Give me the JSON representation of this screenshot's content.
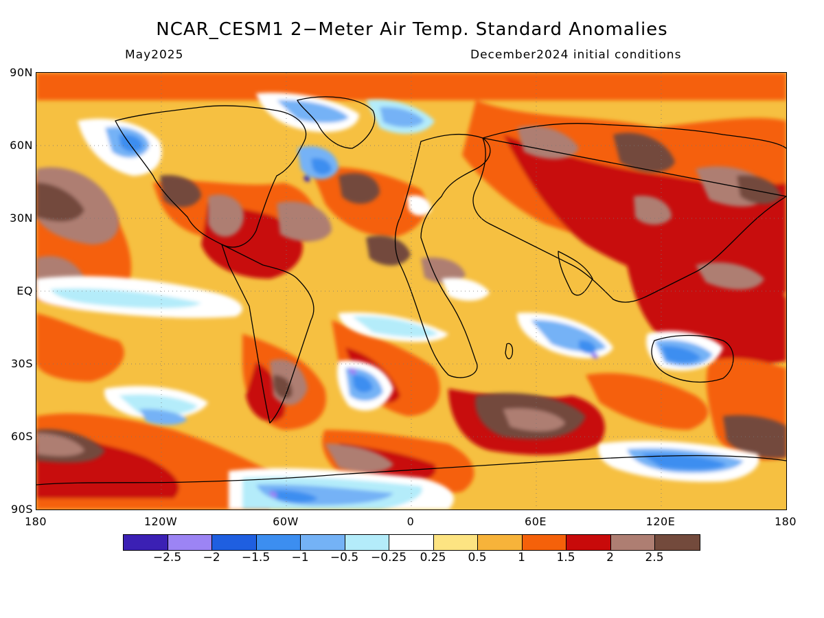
{
  "title": "NCAR_CESM1 2−Meter Air Temp. Standard Anomalies",
  "valid_month": "May2025",
  "init_conditions": "December2024 initial conditions",
  "lat_labels": [
    "90N",
    "60N",
    "30N",
    "EQ",
    "30S",
    "60S",
    "90S"
  ],
  "lon_labels": [
    "180",
    "120W",
    "60W",
    "0",
    "60E",
    "120E",
    "180"
  ],
  "colorbar": {
    "colors": [
      "#3b20b4",
      "#9c84f4",
      "#1f5fe0",
      "#3c8ef0",
      "#74b2f6",
      "#b4ecfa",
      "#ffffff",
      "#fde482",
      "#f7b33a",
      "#f5610a",
      "#c80a0a",
      "#ae7e72",
      "#734a3c"
    ],
    "labels": [
      "−2.5",
      "−2",
      "−1.5",
      "−1",
      "−0.5",
      "−0.25",
      "0.25",
      "0.5",
      "1",
      "1.5",
      "2",
      "2.5"
    ]
  }
}
